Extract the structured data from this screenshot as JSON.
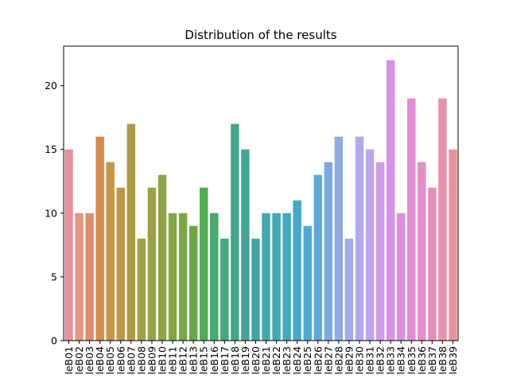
{
  "chart_data": {
    "type": "bar",
    "title": "Distribution of the results",
    "xlabel": "",
    "ylabel": "",
    "ylim": [
      0,
      23.1
    ],
    "yticks": [
      0,
      5,
      10,
      15,
      20
    ],
    "grid": false,
    "legend": "none",
    "categories": [
      "leB01",
      "leB02",
      "leB03",
      "leB04",
      "leB05",
      "leB06",
      "leB07",
      "leB08",
      "leB09",
      "leB10",
      "leB11",
      "leB12",
      "leB13",
      "leB15",
      "leB16",
      "leB17",
      "leB18",
      "leB19",
      "leB20",
      "leB21",
      "leB22",
      "leB23",
      "leB24",
      "leB25",
      "leB26",
      "leB27",
      "leB28",
      "leB29",
      "leB30",
      "leB31",
      "leB32",
      "leB33",
      "leB34",
      "leB35",
      "leB36",
      "leB37",
      "leB38",
      "leB39"
    ],
    "values": [
      15,
      10,
      10,
      16,
      14,
      12,
      17,
      8,
      12,
      13,
      10,
      10,
      9,
      12,
      10,
      8,
      17,
      15,
      8,
      10,
      10,
      10,
      11,
      9,
      13,
      14,
      16,
      8,
      16,
      15,
      14,
      22,
      10,
      19,
      14,
      12,
      19,
      15
    ],
    "colors": [
      "#e8919b",
      "#e59486",
      "#dc8e6a",
      "#d9894a",
      "#c99544",
      "#bb9845",
      "#ae9b44",
      "#a29f45",
      "#99a346",
      "#8fa444",
      "#85a645",
      "#7aa745",
      "#6aa847",
      "#50ac52",
      "#43ab6b",
      "#41a97e",
      "#41a78a",
      "#42a595",
      "#40a6a1",
      "#41a8ab",
      "#42a9b5",
      "#43a9bf",
      "#46a9c9",
      "#4fa8d4",
      "#5ca9de",
      "#7aaae4",
      "#8fabe6",
      "#a3abe8",
      "#b2a9e9",
      "#bea6ea",
      "#cb9fe9",
      "#d692e9",
      "#de8ee0",
      "#e28dd4",
      "#e38ec8",
      "#e58fbb",
      "#e791ad",
      "#e8929f"
    ]
  }
}
